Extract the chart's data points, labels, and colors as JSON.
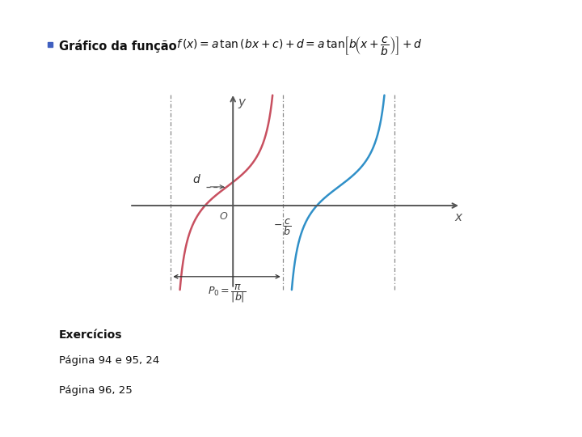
{
  "bg_color": "#ffffff",
  "box_color": "#f5c090",
  "box_edge_color": "#cc8844",
  "box_title": "Exercícios",
  "box_line1": "Página 94 e 95, 24",
  "box_line2": "Página 96, 25",
  "header_bullet_color": "#4060c0",
  "header_text": "Gráfico da função",
  "axis_color": "#555555",
  "dash_color": "#888888",
  "curve1_color": "#c85060",
  "curve2_color": "#3090c8",
  "d_label": "$d$",
  "xaxis_label": "$x$",
  "yaxis_label": "$y$",
  "origin_label": "$O$"
}
